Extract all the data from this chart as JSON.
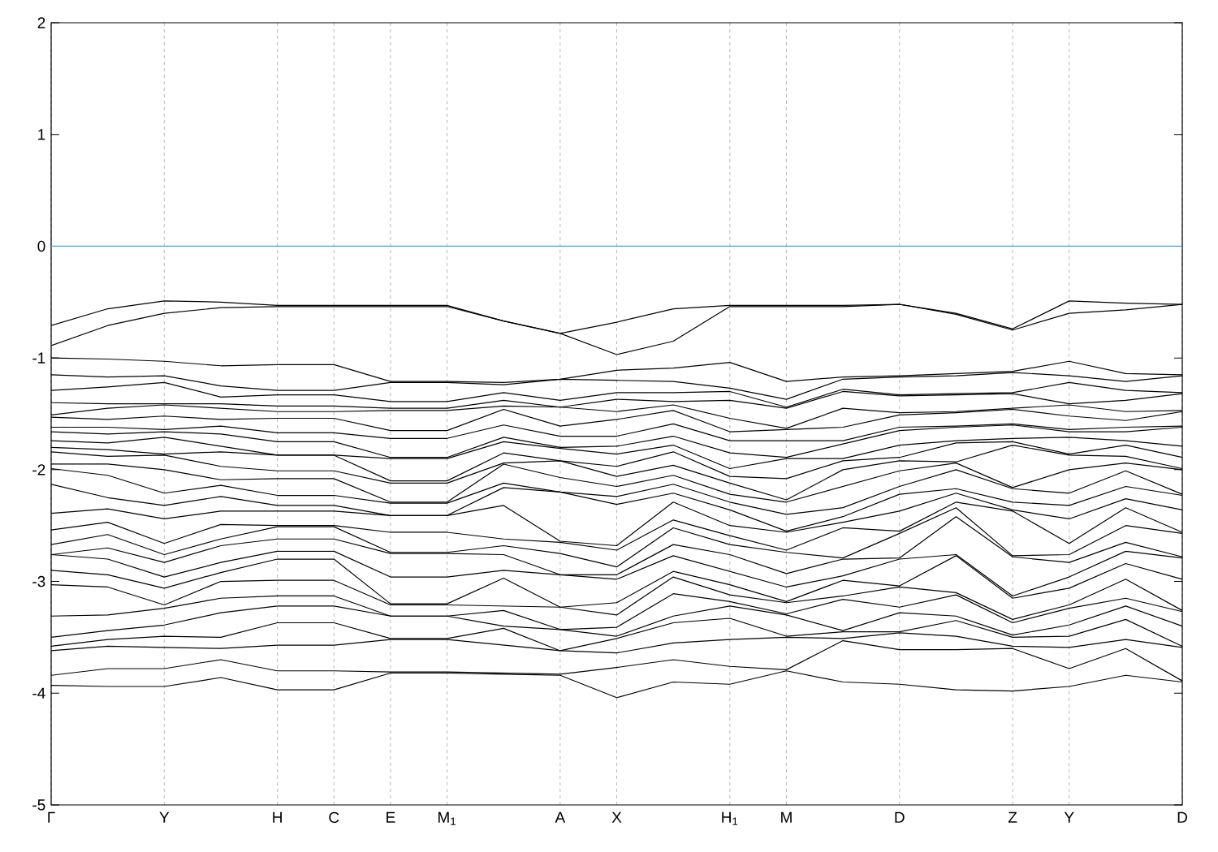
{
  "chart_data": {
    "type": "line",
    "categories": [
      "Γ",
      null,
      "Y",
      null,
      "H",
      "C",
      "E",
      "M$_{1}$",
      null,
      "A",
      "X",
      null,
      "H$_{1}$",
      "M",
      null,
      "D",
      null,
      "Z",
      "Y",
      null,
      "D"
    ],
    "ylim": [
      -5,
      2
    ],
    "yticks": [
      -5,
      -4,
      -3,
      -2,
      -1,
      0,
      1,
      2
    ],
    "grid": "x",
    "ref_lines": [
      {
        "axis": "y",
        "value": 0,
        "color": "#3fa8dc"
      }
    ],
    "series": [
      {
        "color": "#000000",
        "values": [
          -0.71,
          -0.56,
          -0.49,
          -0.5,
          -0.53,
          -0.53,
          -0.53,
          -0.53,
          -0.67,
          -0.78,
          -0.68,
          -0.56,
          -0.53,
          -0.53,
          -0.53,
          -0.52,
          -0.6,
          -0.74,
          -0.49,
          -0.51,
          -0.52
        ]
      },
      {
        "color": "#000000",
        "values": [
          -0.89,
          -0.71,
          -0.6,
          -0.55,
          -0.54,
          -0.54,
          -0.54,
          -0.54,
          -0.67,
          -0.78,
          -0.97,
          -0.85,
          -0.54,
          -0.54,
          -0.54,
          -0.52,
          -0.61,
          -0.75,
          -0.6,
          -0.57,
          -0.52
        ]
      },
      {
        "color": "#000000",
        "values": [
          -1.0,
          -1.01,
          -1.03,
          -1.07,
          -1.06,
          -1.06,
          -1.21,
          -1.21,
          -1.22,
          -1.19,
          -1.11,
          -1.09,
          -1.04,
          -1.21,
          -1.17,
          -1.16,
          -1.14,
          -1.12,
          -1.03,
          -1.14,
          -1.15
        ]
      },
      {
        "color": "#000000",
        "values": [
          -1.15,
          -1.17,
          -1.16,
          -1.25,
          -1.29,
          -1.29,
          -1.22,
          -1.22,
          -1.24,
          -1.19,
          -1.2,
          -1.21,
          -1.27,
          -1.37,
          -1.19,
          -1.17,
          -1.16,
          -1.13,
          -1.16,
          -1.21,
          -1.16
        ]
      },
      {
        "color": "#000000",
        "values": [
          -1.29,
          -1.26,
          -1.22,
          -1.35,
          -1.33,
          -1.33,
          -1.39,
          -1.39,
          -1.31,
          -1.38,
          -1.31,
          -1.31,
          -1.3,
          -1.44,
          -1.28,
          -1.33,
          -1.32,
          -1.31,
          -1.22,
          -1.29,
          -1.31
        ]
      },
      {
        "color": "#000000",
        "values": [
          -1.4,
          -1.41,
          -1.41,
          -1.41,
          -1.43,
          -1.43,
          -1.45,
          -1.45,
          -1.38,
          -1.44,
          -1.37,
          -1.39,
          -1.38,
          -1.45,
          -1.3,
          -1.34,
          -1.33,
          -1.32,
          -1.41,
          -1.38,
          -1.32
        ]
      },
      {
        "color": "#000000",
        "values": [
          -1.51,
          -1.45,
          -1.42,
          -1.45,
          -1.48,
          -1.48,
          -1.47,
          -1.47,
          -1.43,
          -1.44,
          -1.48,
          -1.42,
          -1.54,
          -1.63,
          -1.45,
          -1.49,
          -1.48,
          -1.45,
          -1.42,
          -1.48,
          -1.47
        ]
      },
      {
        "color": "#000000",
        "values": [
          -1.53,
          -1.55,
          -1.52,
          -1.55,
          -1.54,
          -1.54,
          -1.65,
          -1.65,
          -1.46,
          -1.61,
          -1.55,
          -1.47,
          -1.66,
          -1.64,
          -1.62,
          -1.51,
          -1.49,
          -1.46,
          -1.52,
          -1.56,
          -1.48
        ]
      },
      {
        "color": "#000000",
        "values": [
          -1.62,
          -1.62,
          -1.64,
          -1.61,
          -1.67,
          -1.67,
          -1.72,
          -1.72,
          -1.6,
          -1.7,
          -1.7,
          -1.59,
          -1.74,
          -1.74,
          -1.74,
          -1.62,
          -1.61,
          -1.59,
          -1.64,
          -1.62,
          -1.61
        ]
      },
      {
        "color": "#000000",
        "values": [
          -1.66,
          -1.68,
          -1.66,
          -1.68,
          -1.75,
          -1.75,
          -1.89,
          -1.89,
          -1.71,
          -1.8,
          -1.79,
          -1.7,
          -1.85,
          -1.89,
          -1.77,
          -1.65,
          -1.62,
          -1.6,
          -1.66,
          -1.66,
          -1.62
        ]
      },
      {
        "color": "#000000",
        "values": [
          -1.74,
          -1.76,
          -1.71,
          -1.79,
          -1.87,
          -1.87,
          -1.9,
          -1.9,
          -1.75,
          -1.81,
          -1.86,
          -1.78,
          -1.99,
          -1.9,
          -1.9,
          -1.78,
          -1.74,
          -1.72,
          -1.71,
          -1.74,
          -1.79
        ]
      },
      {
        "color": "#000000",
        "values": [
          -1.8,
          -1.82,
          -1.86,
          -1.84,
          -1.87,
          -1.87,
          -2.1,
          -2.1,
          -1.85,
          -1.92,
          -1.97,
          -1.84,
          -2.06,
          -2.08,
          -1.92,
          -1.89,
          -1.76,
          -1.75,
          -1.86,
          -1.78,
          -1.89
        ]
      },
      {
        "color": "#000000",
        "values": [
          -1.84,
          -1.88,
          -1.87,
          -1.97,
          -2.01,
          -2.01,
          -2.12,
          -2.12,
          -1.94,
          -1.92,
          -2.06,
          -1.96,
          -2.12,
          -2.27,
          -2.0,
          -1.92,
          -1.93,
          -1.78,
          -1.87,
          -1.88,
          -1.99
        ]
      },
      {
        "color": "#000000",
        "values": [
          -1.95,
          -1.95,
          -2.0,
          -2.09,
          -2.08,
          -2.08,
          -2.29,
          -2.29,
          -1.95,
          -2.07,
          -2.15,
          -2.05,
          -2.22,
          -2.29,
          -2.15,
          -2.01,
          -1.94,
          -2.16,
          -2.0,
          -1.94,
          -2.0
        ]
      },
      {
        "color": "#000000",
        "values": [
          -1.99,
          -2.05,
          -2.21,
          -2.14,
          -2.23,
          -2.23,
          -2.3,
          -2.3,
          -2.12,
          -2.2,
          -2.24,
          -2.13,
          -2.29,
          -2.4,
          -2.34,
          -2.15,
          -2.0,
          -2.17,
          -2.21,
          -2.01,
          -2.22
        ]
      },
      {
        "color": "#000000",
        "values": [
          -2.13,
          -2.25,
          -2.32,
          -2.24,
          -2.32,
          -2.32,
          -2.41,
          -2.41,
          -2.16,
          -2.2,
          -2.31,
          -2.21,
          -2.36,
          -2.55,
          -2.42,
          -2.22,
          -2.17,
          -2.29,
          -2.32,
          -2.15,
          -2.23
        ]
      },
      {
        "color": "#000000",
        "values": [
          -2.39,
          -2.35,
          -2.44,
          -2.37,
          -2.37,
          -2.37,
          -2.41,
          -2.41,
          -2.32,
          -2.64,
          -2.68,
          -2.29,
          -2.5,
          -2.56,
          -2.47,
          -2.37,
          -2.21,
          -2.36,
          -2.44,
          -2.26,
          -2.36
        ]
      },
      {
        "color": "#000000",
        "values": [
          -2.54,
          -2.47,
          -2.66,
          -2.49,
          -2.5,
          -2.5,
          -2.56,
          -2.56,
          -2.62,
          -2.65,
          -2.72,
          -2.45,
          -2.59,
          -2.72,
          -2.52,
          -2.55,
          -2.29,
          -2.37,
          -2.66,
          -2.34,
          -2.56
        ]
      },
      {
        "color": "#000000",
        "values": [
          -2.67,
          -2.58,
          -2.76,
          -2.62,
          -2.51,
          -2.51,
          -2.74,
          -2.74,
          -2.68,
          -2.75,
          -2.87,
          -2.52,
          -2.67,
          -2.74,
          -2.79,
          -2.57,
          -2.34,
          -2.77,
          -2.76,
          -2.5,
          -2.57
        ]
      },
      {
        "color": "#000000",
        "values": [
          -2.76,
          -2.7,
          -2.83,
          -2.68,
          -2.62,
          -2.62,
          -2.75,
          -2.75,
          -2.76,
          -2.94,
          -2.94,
          -2.67,
          -2.76,
          -2.93,
          -2.8,
          -2.79,
          -2.42,
          -2.78,
          -2.83,
          -2.65,
          -2.78
        ]
      },
      {
        "color": "#000000",
        "values": [
          -2.76,
          -2.8,
          -2.96,
          -2.83,
          -2.73,
          -2.73,
          -2.96,
          -2.96,
          -2.9,
          -2.94,
          -2.98,
          -2.77,
          -2.91,
          -3.05,
          -2.95,
          -2.8,
          -2.76,
          -3.13,
          -2.96,
          -2.73,
          -2.79
        ]
      },
      {
        "color": "#000000",
        "values": [
          -2.9,
          -2.94,
          -3.06,
          -2.92,
          -2.8,
          -2.8,
          -3.2,
          -3.2,
          -2.97,
          -3.23,
          -3.19,
          -2.91,
          -3.03,
          -3.18,
          -2.99,
          -3.04,
          -2.77,
          -3.15,
          -3.06,
          -2.84,
          -2.98
        ]
      },
      {
        "color": "#000000",
        "values": [
          -3.03,
          -3.05,
          -3.21,
          -3.0,
          -2.99,
          -2.99,
          -3.21,
          -3.21,
          -3.22,
          -3.23,
          -3.3,
          -2.96,
          -3.12,
          -3.19,
          -3.13,
          -3.05,
          -3.1,
          -3.34,
          -3.21,
          -2.98,
          -3.26
        ]
      },
      {
        "color": "#000000",
        "values": [
          -3.31,
          -3.3,
          -3.24,
          -3.15,
          -3.13,
          -3.13,
          -3.31,
          -3.31,
          -3.26,
          -3.43,
          -3.41,
          -3.11,
          -3.18,
          -3.29,
          -3.16,
          -3.23,
          -3.12,
          -3.37,
          -3.24,
          -3.15,
          -3.27
        ]
      },
      {
        "color": "#000000",
        "values": [
          -3.5,
          -3.44,
          -3.39,
          -3.28,
          -3.22,
          -3.22,
          -3.31,
          -3.31,
          -3.4,
          -3.43,
          -3.49,
          -3.31,
          -3.22,
          -3.3,
          -3.44,
          -3.28,
          -3.31,
          -3.48,
          -3.39,
          -3.22,
          -3.4
        ]
      },
      {
        "color": "#000000",
        "values": [
          -3.58,
          -3.52,
          -3.49,
          -3.5,
          -3.37,
          -3.37,
          -3.51,
          -3.51,
          -3.42,
          -3.62,
          -3.51,
          -3.37,
          -3.33,
          -3.49,
          -3.45,
          -3.45,
          -3.35,
          -3.5,
          -3.49,
          -3.34,
          -3.58
        ]
      },
      {
        "color": "#000000",
        "values": [
          -3.62,
          -3.58,
          -3.59,
          -3.6,
          -3.57,
          -3.57,
          -3.52,
          -3.52,
          -3.57,
          -3.62,
          -3.64,
          -3.55,
          -3.52,
          -3.5,
          -3.51,
          -3.46,
          -3.49,
          -3.58,
          -3.59,
          -3.52,
          -3.59
        ]
      },
      {
        "color": "#000000",
        "values": [
          -3.84,
          -3.78,
          -3.78,
          -3.7,
          -3.8,
          -3.8,
          -3.81,
          -3.81,
          -3.82,
          -3.83,
          -3.77,
          -3.7,
          -3.76,
          -3.79,
          -3.53,
          -3.61,
          -3.61,
          -3.6,
          -3.78,
          -3.6,
          -3.89
        ]
      },
      {
        "color": "#000000",
        "values": [
          -3.93,
          -3.94,
          -3.94,
          -3.86,
          -3.97,
          -3.97,
          -3.82,
          -3.82,
          -3.83,
          -3.84,
          -4.04,
          -3.9,
          -3.92,
          -3.8,
          -3.9,
          -3.92,
          -3.97,
          -3.98,
          -3.94,
          -3.84,
          -3.9
        ]
      }
    ]
  }
}
